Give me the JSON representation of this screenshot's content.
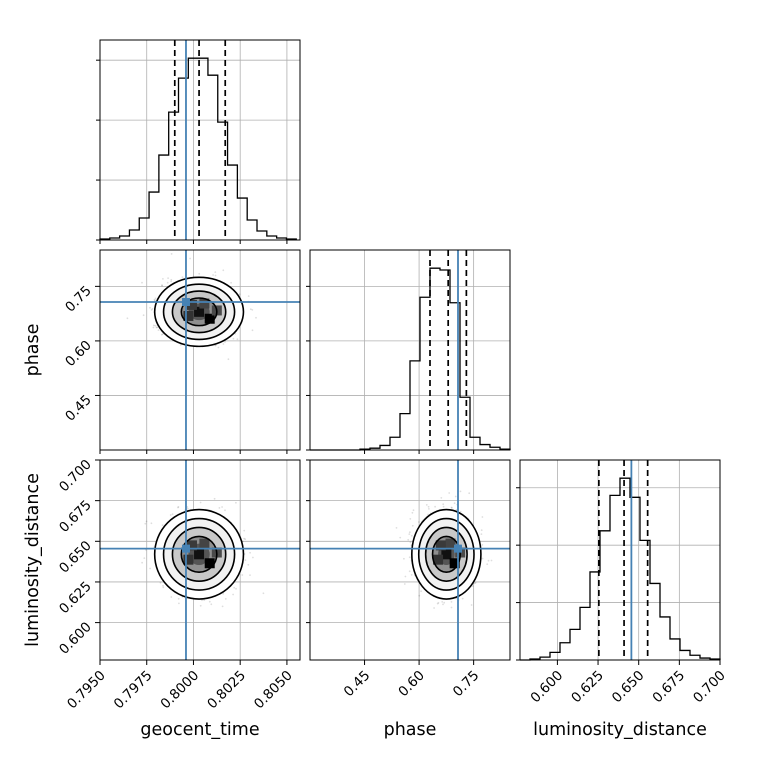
{
  "chart_data": {
    "type": "corner",
    "parameters": [
      {
        "name": "geocent_time",
        "label": "geocent_time",
        "truth": 0.7996,
        "range": [
          0.795,
          0.8057
        ],
        "ticks": [
          0.795,
          0.7975,
          0.8,
          0.8025,
          0.805
        ],
        "tick_labels": [
          "0.7950",
          "0.7975",
          "0.8000",
          "0.8025",
          "0.8050"
        ],
        "quantiles": [
          0.799,
          0.8003,
          0.8017
        ]
      },
      {
        "name": "phase",
        "label": "phase",
        "truth": 0.707,
        "range": [
          0.3,
          0.85
        ],
        "ticks": [
          0.45,
          0.6,
          0.75
        ],
        "tick_labels": [
          "0.45",
          "0.60",
          "0.75"
        ],
        "quantiles": [
          0.63,
          0.68,
          0.73
        ]
      },
      {
        "name": "luminosity_distance",
        "label": "luminosity_distance",
        "truth": 0.6455,
        "range": [
          0.577,
          0.7
        ],
        "ticks": [
          0.6,
          0.625,
          0.65,
          0.675,
          0.7
        ],
        "tick_labels": [
          "0.600",
          "0.625",
          "0.650",
          "0.675",
          "0.700"
        ],
        "quantiles": [
          0.6255,
          0.641,
          0.6555
        ]
      }
    ],
    "histograms": [
      {
        "param": "geocent_time",
        "bin_edges_range": [
          0.795,
          0.8055
        ],
        "counts": [
          1,
          2,
          4,
          10,
          22,
          48,
          85,
          128,
          162,
          182,
          182,
          165,
          118,
          75,
          42,
          20,
          9,
          4,
          2,
          1
        ]
      },
      {
        "param": "phase",
        "bin_edges_range": [
          0.3,
          0.85
        ],
        "counts": [
          0,
          0,
          0,
          0,
          0,
          1,
          2,
          5,
          14,
          40,
          98,
          168,
          200,
          198,
          162,
          58,
          14,
          6,
          3,
          1
        ]
      },
      {
        "param": "luminosity_distance",
        "bin_edges_range": [
          0.577,
          0.7
        ],
        "counts": [
          0,
          1,
          3,
          8,
          18,
          32,
          55,
          92,
          135,
          172,
          190,
          170,
          125,
          80,
          45,
          22,
          10,
          5,
          2,
          1
        ]
      }
    ],
    "joint": [
      {
        "x": "geocent_time",
        "y": "phase",
        "x_center": 0.8003,
        "y_center": 0.68,
        "x_sigma": 0.00095,
        "y_sigma": 0.038
      },
      {
        "x": "geocent_time",
        "y": "luminosity_distance",
        "x_center": 0.8003,
        "y_center": 0.642,
        "x_sigma": 0.00095,
        "y_sigma": 0.011
      },
      {
        "x": "phase",
        "y": "luminosity_distance",
        "x_center": 0.675,
        "y_center": 0.642,
        "x_sigma": 0.038,
        "y_sigma": 0.011
      }
    ],
    "grid": true,
    "colors": {
      "truth": "#4682b4",
      "line": "#000000",
      "grid": "#b0b0b0",
      "scatter": "#000000"
    }
  }
}
